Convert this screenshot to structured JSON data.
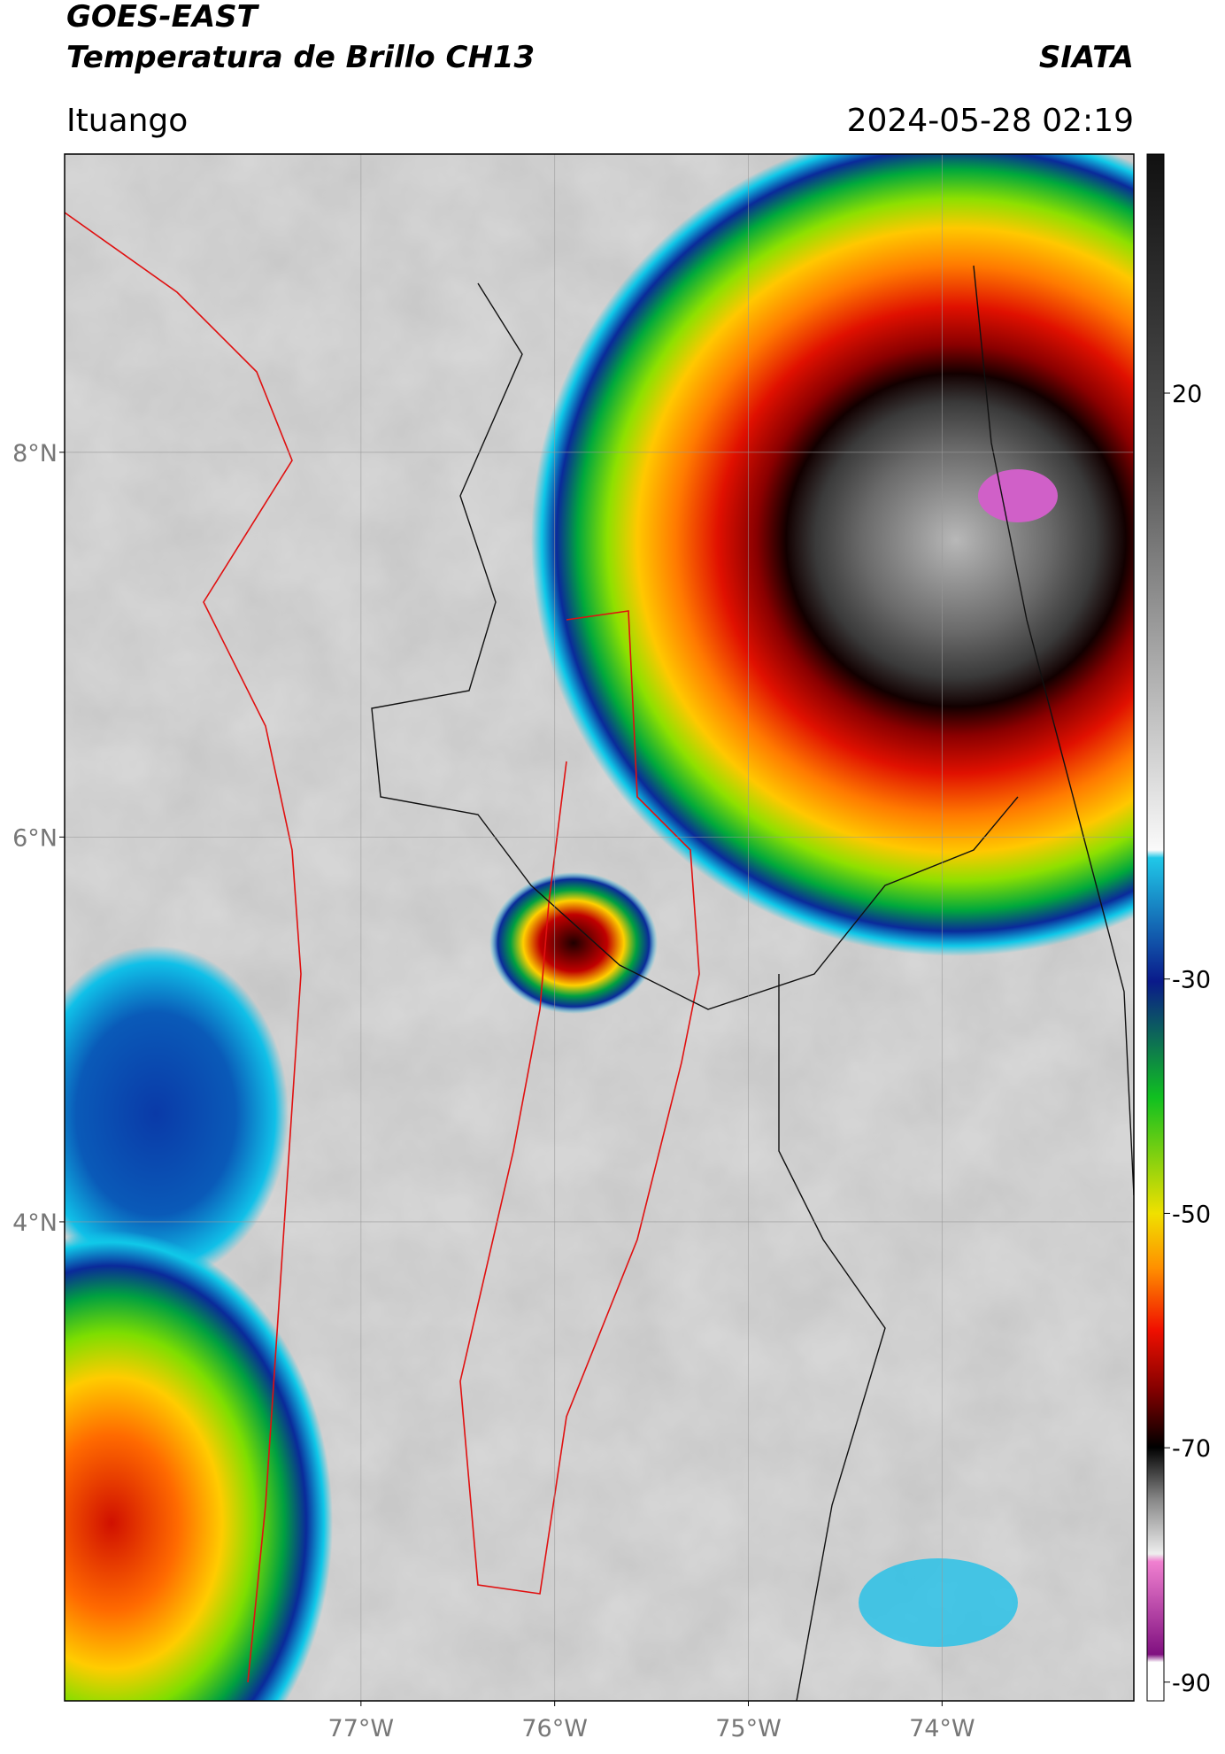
{
  "header": {
    "title": "GOES-EAST",
    "subtitle": "Temperatura de Brillo CH13",
    "source": "SIATA",
    "location": "Ituango",
    "datetime": "2024-05-28 02:19"
  },
  "map": {
    "xlim": [
      -78.53,
      -73.01
    ],
    "ylim": [
      1.51,
      9.55
    ],
    "xticks": [
      {
        "value": -77,
        "label": "77°W"
      },
      {
        "value": -76,
        "label": "76°W"
      },
      {
        "value": -75,
        "label": "75°W"
      },
      {
        "value": -74,
        "label": "74°W"
      }
    ],
    "yticks": [
      {
        "value": 8,
        "label": "8°N"
      },
      {
        "value": 6,
        "label": "6°N"
      },
      {
        "value": 4,
        "label": "4°N"
      }
    ],
    "grid": true
  },
  "colorbar": {
    "lim": [
      -91.6,
      40.4
    ],
    "ticks": [
      20,
      -30,
      -50,
      -70,
      -90
    ]
  }
}
